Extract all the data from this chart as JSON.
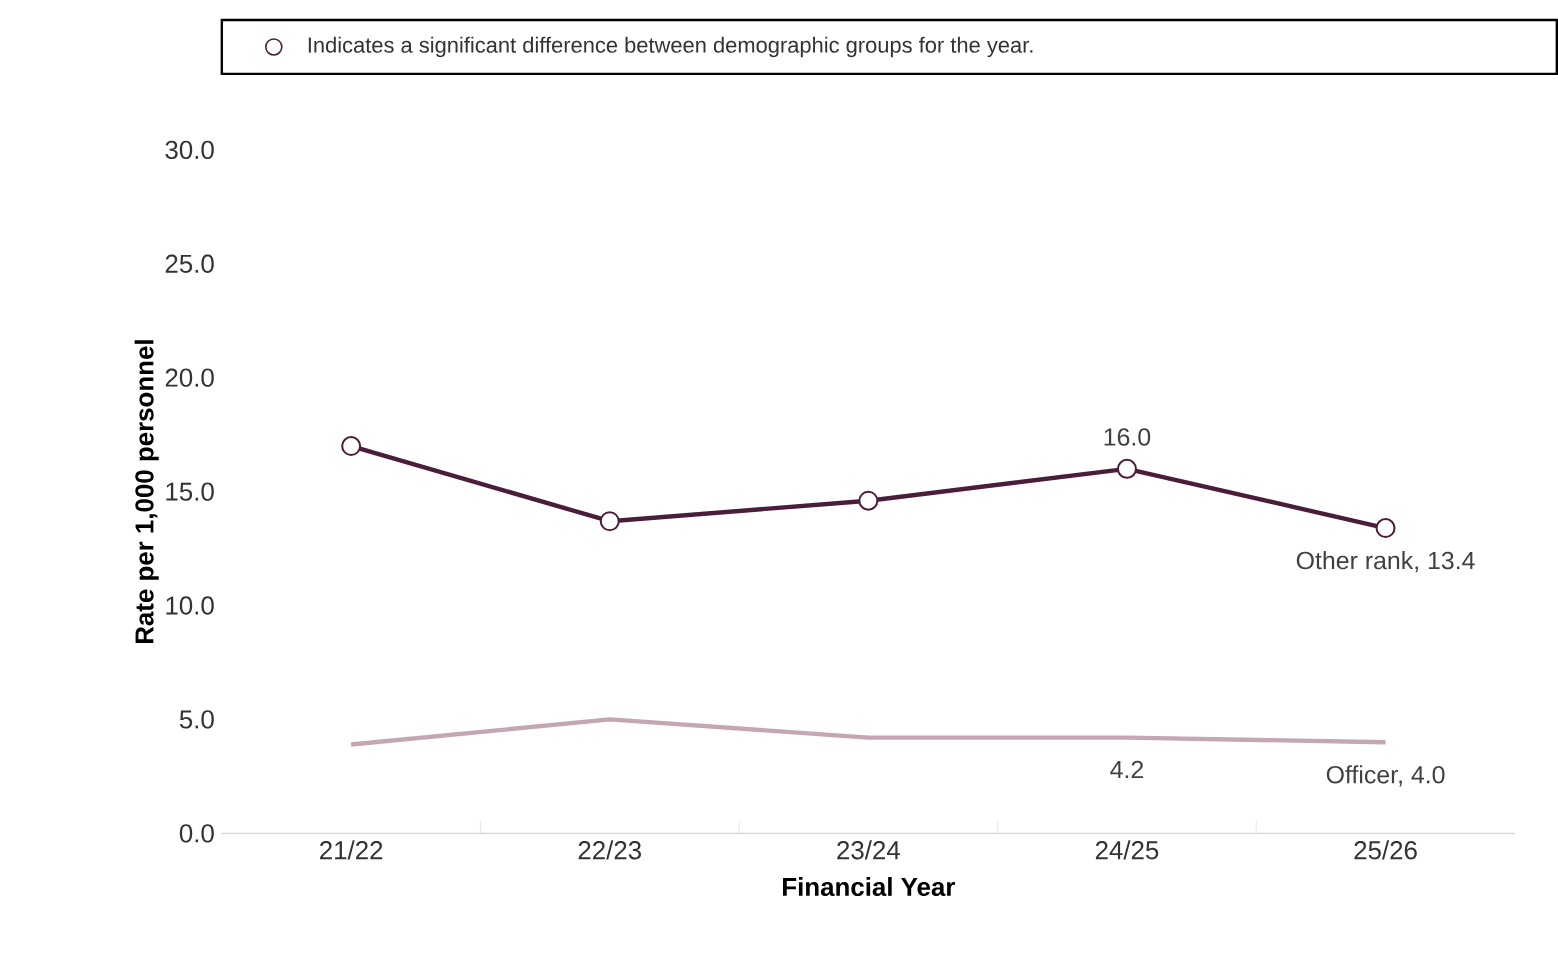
{
  "chart_data": {
    "type": "line",
    "ylabel": "Rate per 1,000 personnel",
    "xlabel": "Financial Year",
    "annotations": [
      "Indicates a significant difference between demographic groups for the year."
    ],
    "categories": [
      "21/22",
      "22/23",
      "23/24",
      "24/25",
      "25/26"
    ],
    "series": [
      {
        "color": "#4a1e3a",
        "marker": "circle",
        "values": [
          17.0,
          13.7,
          14.6,
          16.0,
          13.4
        ],
        "value_labels": [
          null,
          null,
          null,
          "16.0",
          "Other rank, 13.4"
        ]
      },
      {
        "color": "#c4a6b4",
        "marker": "none",
        "values": [
          3.9,
          5.0,
          4.2,
          4.2,
          4.0
        ],
        "value_labels": [
          null,
          null,
          null,
          "4.2",
          "Officer, 4.0"
        ]
      }
    ],
    "ylim": [
      0,
      30
    ],
    "yticks": [
      {
        "value": 0,
        "label": "0.0"
      },
      {
        "value": 5,
        "label": "5.0"
      },
      {
        "value": 10,
        "label": "10.0"
      },
      {
        "value": 15,
        "label": "15.0"
      },
      {
        "value": 20,
        "label": "20.0"
      },
      {
        "value": 25,
        "label": "25.0"
      },
      {
        "value": 30,
        "label": "30.0"
      }
    ],
    "grid": false
  }
}
